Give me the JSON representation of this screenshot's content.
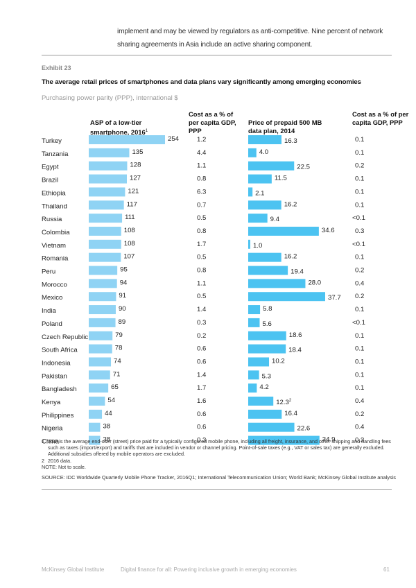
{
  "intro_text": "implement and may be viewed by regulators as anti-competitive. Nine percent of network sharing agreements in Asia include an active sharing component.",
  "exhibit_label": "Exhibit 23",
  "title": "The average retail prices of smartphones and data plans vary significantly among emerging economies",
  "subtitle": "Purchasing power parity (PPP), international $",
  "column_headers": {
    "asp": "ASP of a low-tier smartphone, 2016",
    "asp_footnote": "1",
    "asp_pct": "Cost as a % of per capita GDP, PPP",
    "data_plan": "Price of prepaid 500 MB data plan, 2014",
    "data_plan_pct": "Cost as a % of per capita GDP, PPP"
  },
  "colors": {
    "asp_bar": "#8fd3f4",
    "data_bar": "#4cc3f1"
  },
  "chart_data": {
    "type": "bar",
    "title": "The average retail prices of smartphones and data plans vary significantly among emerging economies",
    "subtitle": "Purchasing power parity (PPP), international $",
    "categories": [
      "Turkey",
      "Tanzania",
      "Egypt",
      "Brazil",
      "Ethiopia",
      "Thailand",
      "Russia",
      "Colombia",
      "Vietnam",
      "Romania",
      "Peru",
      "Morocco",
      "Mexico",
      "India",
      "Poland",
      "Czech Republic",
      "South Africa",
      "Indonesia",
      "Pakistan",
      "Bangladesh",
      "Kenya",
      "Philippines",
      "Nigeria",
      "China"
    ],
    "series": [
      {
        "name": "ASP of a low-tier smartphone, 2016",
        "type": "bar",
        "values": [
          254,
          135,
          128,
          127,
          121,
          117,
          111,
          108,
          108,
          107,
          95,
          94,
          91,
          90,
          89,
          79,
          78,
          74,
          71,
          65,
          54,
          44,
          38,
          38
        ]
      },
      {
        "name": "Smartphone cost as a % of per capita GDP, PPP",
        "type": "table",
        "values": [
          "1.2",
          "4.4",
          "1.1",
          "0.8",
          "6.3",
          "0.7",
          "0.5",
          "0.8",
          "1.7",
          "0.5",
          "0.8",
          "1.1",
          "0.5",
          "1.4",
          "0.3",
          "0.2",
          "0.6",
          "0.6",
          "1.4",
          "1.7",
          "1.6",
          "0.6",
          "0.6",
          "0.3"
        ]
      },
      {
        "name": "Price of prepaid 500 MB data plan, 2014",
        "type": "bar",
        "values": [
          16.3,
          4.0,
          22.5,
          11.5,
          2.1,
          16.2,
          9.4,
          34.6,
          1.0,
          16.2,
          19.4,
          28.0,
          37.7,
          5.8,
          5.6,
          18.6,
          18.4,
          10.2,
          5.3,
          4.2,
          12.3,
          16.4,
          22.6,
          34.9
        ],
        "labels": [
          "16.3",
          "4.0",
          "22.5",
          "11.5",
          "2.1",
          "16.2",
          "9.4",
          "34.6",
          "1.0",
          "16.2",
          "19.4",
          "28.0",
          "37.7",
          "5.8",
          "5.6",
          "18.6",
          "18.4",
          "10.2",
          "5.3",
          "4.2",
          "12.3",
          "16.4",
          "22.6",
          "34.9"
        ],
        "label_footnotes": {
          "20": "2"
        }
      },
      {
        "name": "Data plan cost as a % of per capita GDP, PPP",
        "type": "table",
        "values": [
          "0.1",
          "0.1",
          "0.2",
          "0.1",
          "0.1",
          "0.1",
          "<0.1",
          "0.3",
          "<0.1",
          "0.1",
          "0.2",
          "0.4",
          "0.2",
          "0.1",
          "<0.1",
          "0.1",
          "0.1",
          "0.1",
          "0.1",
          "0.1",
          "0.4",
          "0.2",
          "0.4",
          "0.3"
        ]
      }
    ],
    "xlabel": "",
    "ylabel": "",
    "grid": false,
    "note": "Not to scale"
  },
  "footnotes": [
    {
      "num": "1",
      "text": "ASP is the average end-user (street) price paid for a typically configured mobile phone, including all freight, insurance, and other shipping and handling fees such as taxes (import/export) and tariffs that are included in vendor or channel pricing. Point-of-sale taxes (e.g., VAT or sales tax) are generally excluded. Additional subsidies offered by mobile operators are excluded."
    },
    {
      "num": "2",
      "text": "2016 data."
    }
  ],
  "note": "NOTE: Not to scale.",
  "source": "SOURCE:  IDC Worldwide Quarterly Mobile Phone Tracker, 2016Q1; International Telecommunication Union; World Bank; McKinsey Global Institute analysis",
  "footer": {
    "publisher": "McKinsey Global Institute",
    "report": "Digital finance for all: Powering inclusive growth in emerging economies",
    "page": "61"
  }
}
